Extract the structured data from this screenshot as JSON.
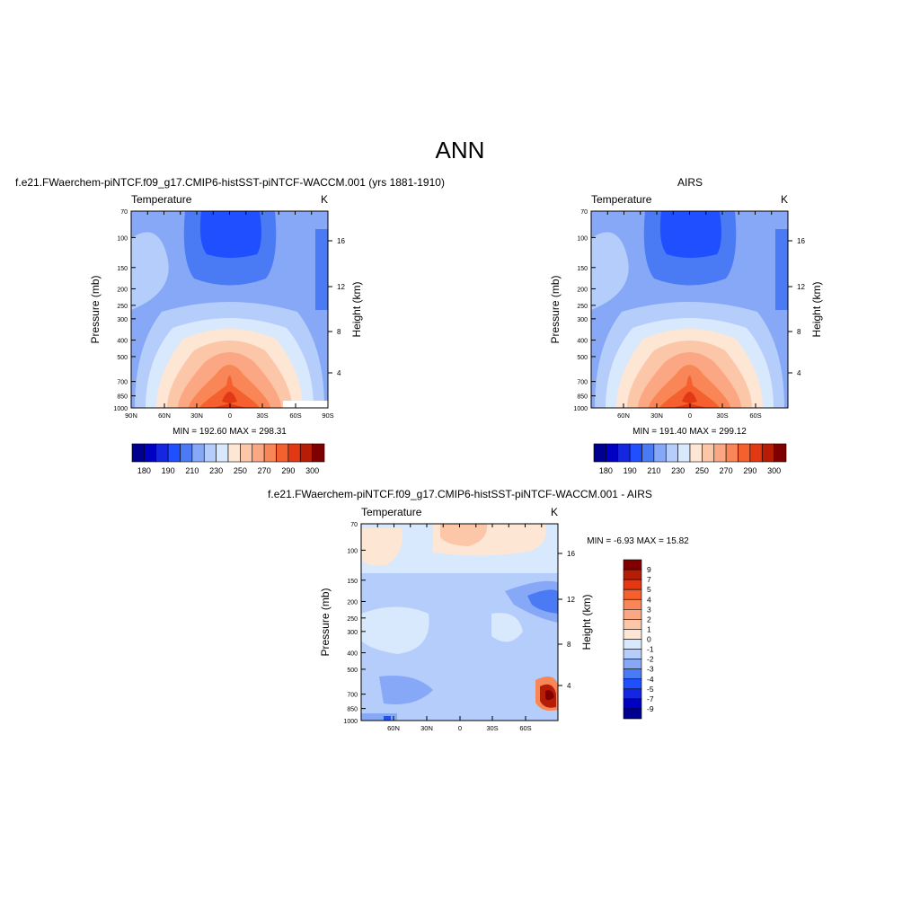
{
  "page_title": "ANN",
  "panels": [
    {
      "id": "model",
      "heading": "f.e21.FWaerchem-piNTCF.f09_g17.CMIP6-histSST-piNTCF-WACCM.001 (yrs 1881-1910)",
      "left_label": "Temperature",
      "right_label": "K",
      "ylabel": "Pressure (mb)",
      "ylabel_right": "Height (km)",
      "pressure_ticks": [
        "70",
        "100",
        "150",
        "200",
        "250",
        "300",
        "400",
        "500",
        "700",
        "850",
        "1000"
      ],
      "height_ticks": [
        "16",
        "12",
        "8",
        "4"
      ],
      "lat_ticks": [
        "90N",
        "60N",
        "30N",
        "0",
        "30S",
        "60S",
        "90S"
      ],
      "minmax": "MIN = 192.60  MAX = 298.31"
    },
    {
      "id": "obs",
      "heading": "AIRS",
      "left_label": "Temperature",
      "right_label": "K",
      "ylabel": "Pressure (mb)",
      "ylabel_right": "Height (km)",
      "pressure_ticks": [
        "70",
        "100",
        "150",
        "200",
        "250",
        "300",
        "400",
        "500",
        "700",
        "850",
        "1000"
      ],
      "height_ticks": [
        "16",
        "12",
        "8",
        "4"
      ],
      "lat_ticks": [
        "60N",
        "30N",
        "0",
        "30S",
        "60S"
      ],
      "minmax": "MIN = 191.40  MAX = 299.12"
    },
    {
      "id": "diff",
      "heading": "f.e21.FWaerchem-piNTCF.f09_g17.CMIP6-histSST-piNTCF-WACCM.001 - AIRS",
      "left_label": "Temperature",
      "right_label": "K",
      "ylabel": "Pressure (mb)",
      "ylabel_right": "Height (km)",
      "pressure_ticks": [
        "70",
        "100",
        "150",
        "200",
        "250",
        "300",
        "400",
        "500",
        "700",
        "850",
        "1000"
      ],
      "height_ticks": [
        "16",
        "12",
        "8",
        "4"
      ],
      "lat_ticks": [
        "60N",
        "30N",
        "0",
        "30S",
        "60S"
      ],
      "minmax": "MIN =  -6.93  MAX =  15.82"
    }
  ],
  "colorbar_abs": {
    "labels": [
      "180",
      "190",
      "210",
      "230",
      "250",
      "270",
      "290",
      "300"
    ],
    "colors": [
      "#00008f",
      "#0000c4",
      "#1526e0",
      "#1f4fff",
      "#4a7bf5",
      "#86a8f7",
      "#b5cdfb",
      "#d8e8fd",
      "#fde6d4",
      "#fcc7a9",
      "#fca784",
      "#f98657",
      "#f4602e",
      "#e33814",
      "#b71c07",
      "#7f0000"
    ]
  },
  "colorbar_diff": {
    "labels": [
      "9",
      "7",
      "5",
      "4",
      "3",
      "2",
      "1",
      "0",
      "-1",
      "-2",
      "-3",
      "-4",
      "-5",
      "-7",
      "-9"
    ],
    "colors": [
      "#7f0000",
      "#b71c07",
      "#e33814",
      "#f4602e",
      "#f98657",
      "#fca784",
      "#fcc7a9",
      "#fde6d4",
      "#d8e8fd",
      "#b5cdfb",
      "#86a8f7",
      "#4a7bf5",
      "#1f4fff",
      "#1526e0",
      "#0000c4",
      "#00008f"
    ]
  },
  "chart_data": [
    {
      "type": "heatmap",
      "title": "f.e21.FWaerchem-piNTCF.f09_g17.CMIP6-histSST-piNTCF-WACCM.001 (yrs 1881-1910)",
      "xlabel": "",
      "ylabel": "Pressure (mb)",
      "y2label": "Height (km)",
      "x": [
        "90N",
        "60N",
        "30N",
        "0",
        "30S",
        "60S",
        "90S"
      ],
      "y": [
        70,
        100,
        150,
        200,
        250,
        300,
        400,
        500,
        700,
        850,
        1000
      ],
      "z_units": "K",
      "zlim": [
        192.6,
        298.31
      ],
      "y_scale": "log (reversed)"
    },
    {
      "type": "heatmap",
      "title": "AIRS",
      "ylabel": "Pressure (mb)",
      "y2label": "Height (km)",
      "x": [
        "60N",
        "30N",
        "0",
        "30S",
        "60S"
      ],
      "y": [
        70,
        100,
        150,
        200,
        250,
        300,
        400,
        500,
        700,
        850,
        1000
      ],
      "z_units": "K",
      "zlim": [
        191.4,
        299.12
      ],
      "y_scale": "log (reversed)"
    },
    {
      "type": "heatmap",
      "title": "f.e21.FWaerchem-piNTCF.f09_g17.CMIP6-histSST-piNTCF-WACCM.001 - AIRS",
      "ylabel": "Pressure (mb)",
      "y2label": "Height (km)",
      "x": [
        "60N",
        "30N",
        "0",
        "30S",
        "60S"
      ],
      "y": [
        70,
        100,
        150,
        200,
        250,
        300,
        400,
        500,
        700,
        850,
        1000
      ],
      "z_units": "K",
      "zlim": [
        -6.93,
        15.82
      ],
      "y_scale": "log (reversed)"
    }
  ]
}
